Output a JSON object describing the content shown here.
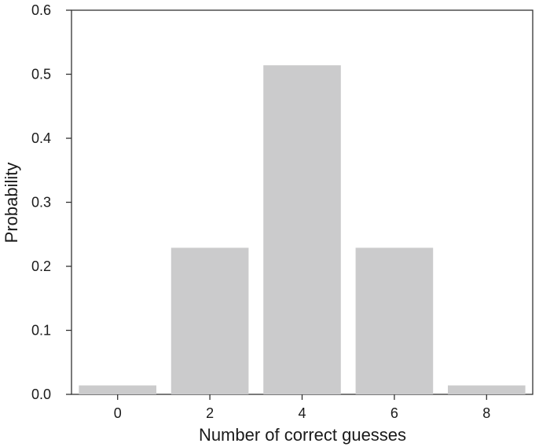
{
  "chart_data": {
    "type": "bar",
    "categories": [
      "0",
      "2",
      "4",
      "6",
      "8"
    ],
    "values": [
      0.014,
      0.229,
      0.514,
      0.229,
      0.014
    ],
    "xlabel": "Number of correct guesses",
    "ylabel": "Probability",
    "ylim": [
      0,
      0.6
    ],
    "yticks": [
      "0.0",
      "0.1",
      "0.2",
      "0.3",
      "0.4",
      "0.5",
      "0.6"
    ],
    "grid": false,
    "bar_color": "#cbcbcc"
  }
}
